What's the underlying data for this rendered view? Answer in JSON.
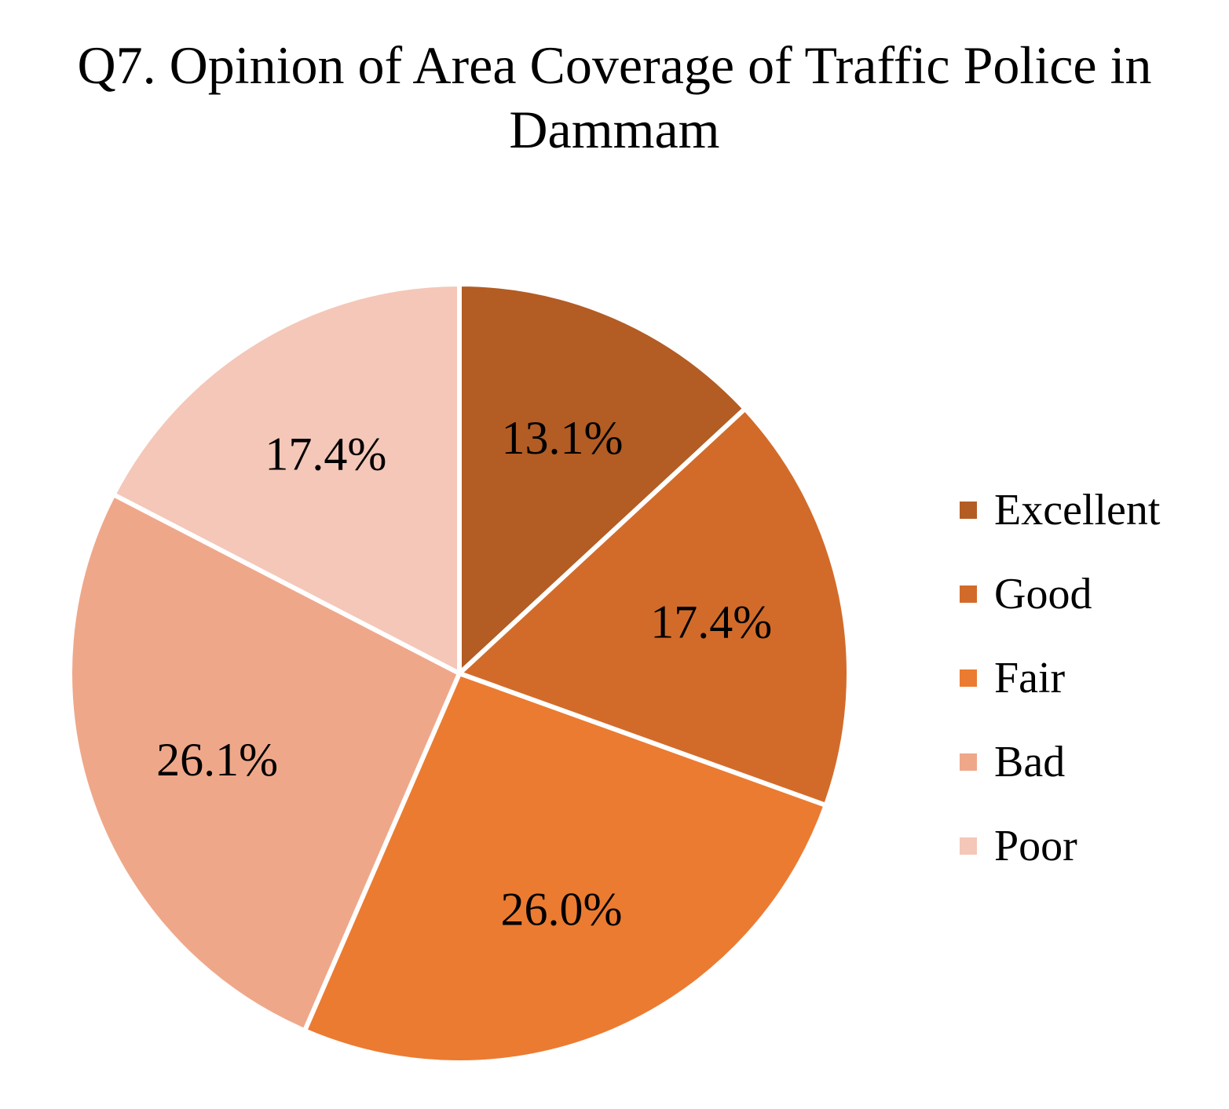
{
  "chart_data": {
    "type": "pie",
    "title": "Q7.  Opinion of Area Coverage of Traffic Police in Dammam",
    "title_lines": [
      "Q7.  Opinion of Area Coverage of Traffic Police in",
      "Dammam"
    ],
    "categories": [
      "Excellent",
      "Good",
      "Fair",
      "Bad",
      "Poor"
    ],
    "values": [
      13.1,
      17.4,
      26.0,
      26.1,
      17.4
    ],
    "value_labels": [
      "13.1%",
      "17.4%",
      "26.0%",
      "26.1%",
      "17.4%"
    ],
    "colors": [
      "#B35C23",
      "#D26B2A",
      "#EB7B31",
      "#EFA78A",
      "#F4C7B8"
    ],
    "start_angle_deg": 0,
    "direction": "clockwise",
    "legend_position": "right"
  }
}
